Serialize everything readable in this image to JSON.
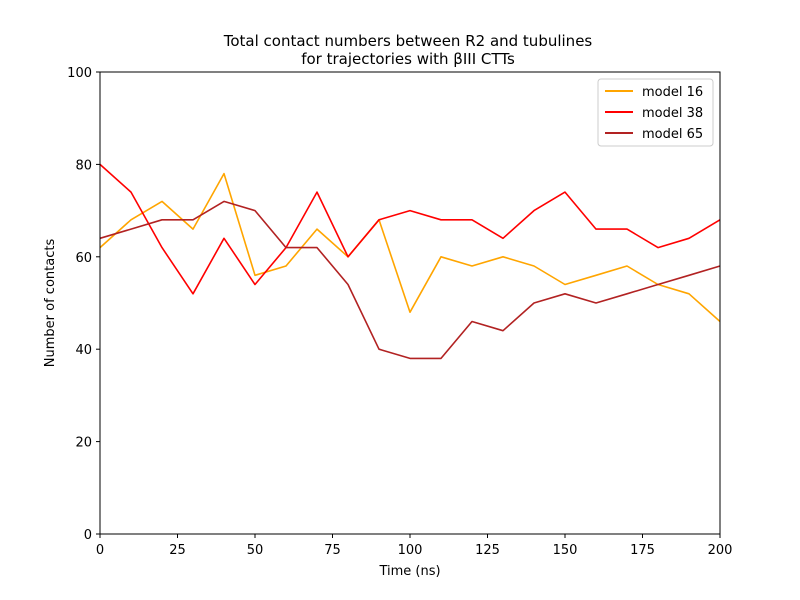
{
  "chart_data": {
    "type": "line",
    "title": "Total contact numbers between R2 and tubulines",
    "subtitle": "for trajectories with βIII CTTs",
    "xlabel": "Time (ns)",
    "ylabel": "Number of contacts",
    "xlim": [
      0,
      200
    ],
    "ylim": [
      0,
      100
    ],
    "xticks": [
      "0",
      "25",
      "50",
      "75",
      "100",
      "125",
      "150",
      "175",
      "200"
    ],
    "yticks": [
      "0",
      "20",
      "40",
      "60",
      "80",
      "100"
    ],
    "grid": false,
    "legend_position": "top-right",
    "x": [
      0,
      10,
      20,
      30,
      40,
      50,
      60,
      70,
      80,
      90,
      100,
      110,
      120,
      130,
      140,
      150,
      160,
      170,
      180,
      190,
      200
    ],
    "series": [
      {
        "name": "model 16",
        "color": "#ffa500",
        "values": [
          62,
          68,
          72,
          66,
          78,
          56,
          58,
          66,
          60,
          68,
          48,
          60,
          58,
          60,
          58,
          54,
          56,
          58,
          54,
          52,
          46
        ]
      },
      {
        "name": "model 38",
        "color": "#ff0000",
        "values": [
          80,
          74,
          62,
          52,
          64,
          54,
          62,
          74,
          60,
          68,
          70,
          68,
          68,
          64,
          70,
          74,
          66,
          66,
          62,
          64,
          68
        ]
      },
      {
        "name": "model 65",
        "color": "#b22222",
        "values": [
          64,
          66,
          68,
          68,
          72,
          70,
          62,
          62,
          54,
          40,
          38,
          38,
          46,
          44,
          50,
          52,
          50,
          52,
          54,
          56,
          58
        ]
      }
    ]
  }
}
